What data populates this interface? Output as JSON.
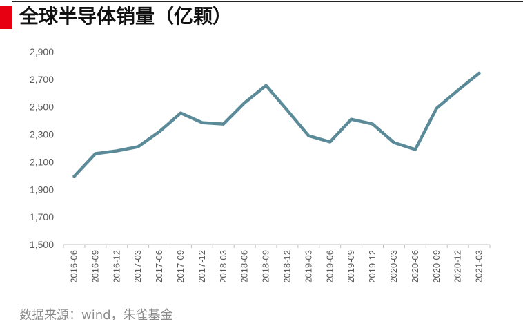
{
  "title": "全球半导体销量（亿颗）",
  "source": "数据来源：wind，朱雀基金",
  "colors": {
    "accent": "#e60012",
    "line": "#5b8a99",
    "axis": "#bfbfbf",
    "text": "#595959"
  },
  "chart_data": {
    "type": "line",
    "title": "全球半导体销量（亿颗）",
    "xlabel": "",
    "ylabel": "",
    "ylim": [
      1500,
      2900
    ],
    "yticks": [
      "1,500",
      "1,700",
      "1,900",
      "2,100",
      "2,300",
      "2,500",
      "2,700",
      "2,900"
    ],
    "yticks_values": [
      1500,
      1700,
      1900,
      2100,
      2300,
      2500,
      2700,
      2900
    ],
    "grid": false,
    "categories": [
      "2016-06",
      "2016-09",
      "2016-12",
      "2017-03",
      "2017-06",
      "2017-09",
      "2017-12",
      "2018-03",
      "2018-06",
      "2018-09",
      "2018-12",
      "2019-03",
      "2019-06",
      "2019-09",
      "2019-12",
      "2020-03",
      "2020-06",
      "2020-09",
      "2020-12",
      "2021-03"
    ],
    "series": [
      {
        "values": [
          1995,
          2160,
          2180,
          2210,
          2320,
          2455,
          2385,
          2375,
          2530,
          2655,
          2475,
          2290,
          2245,
          2410,
          2375,
          2240,
          2190,
          2490,
          2620,
          2745
        ]
      }
    ]
  }
}
